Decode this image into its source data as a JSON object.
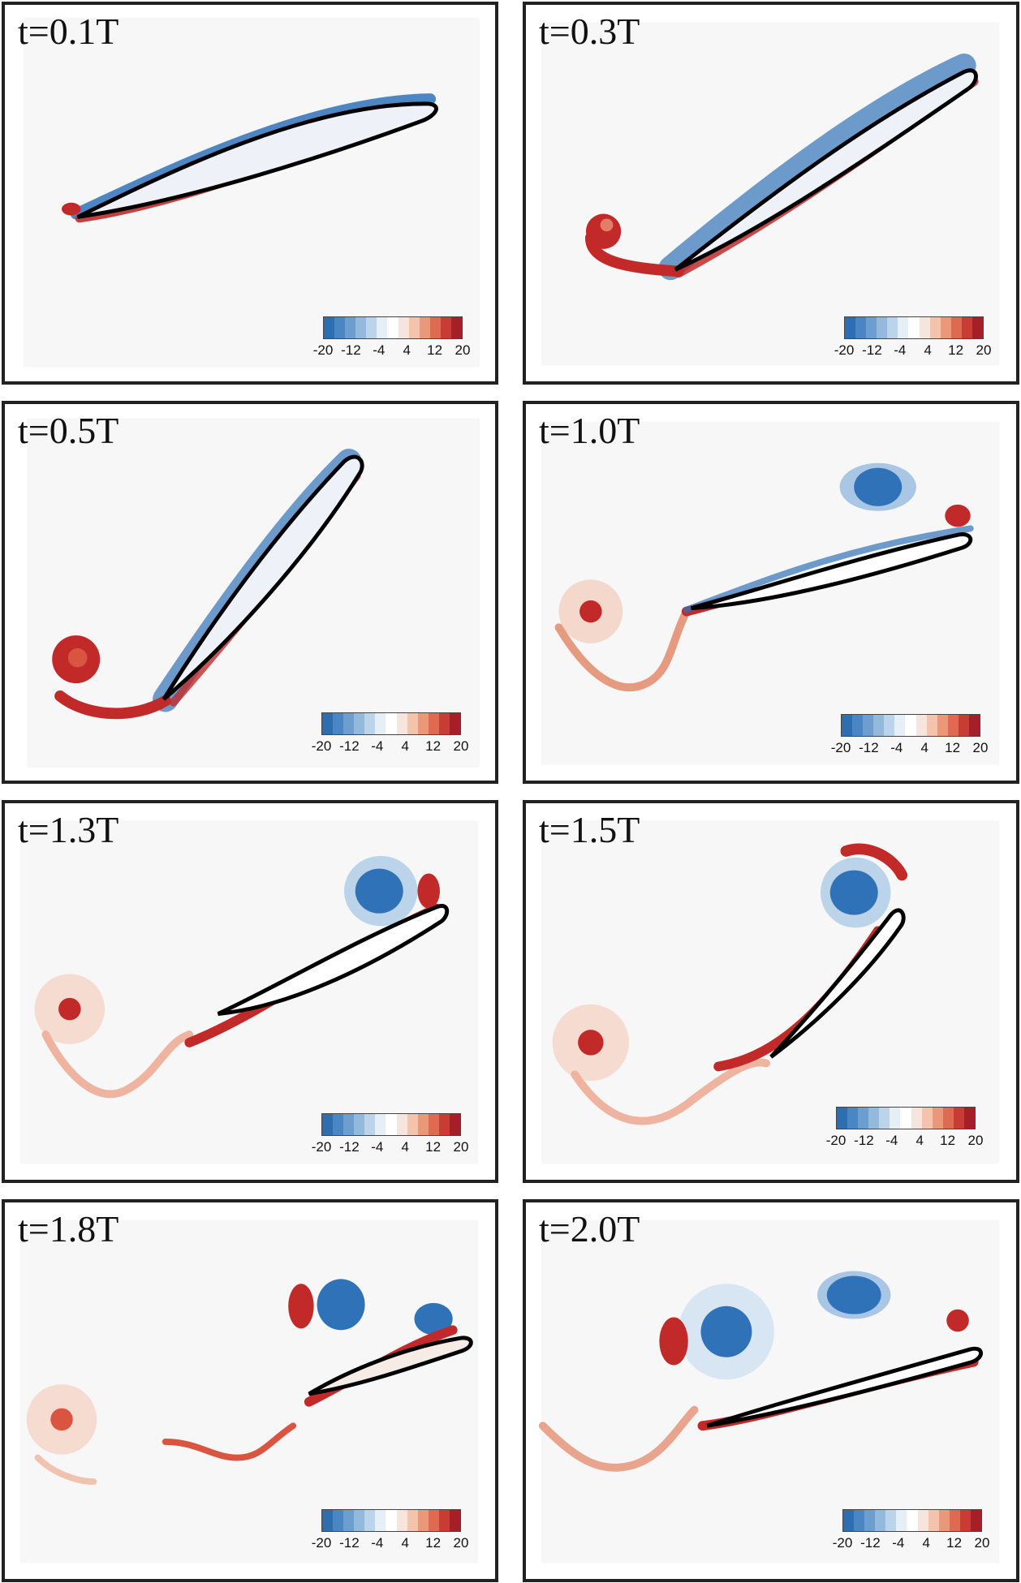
{
  "colors": {
    "background": "#f7f7f7",
    "positive_vorticity": "#c22a2a",
    "negative_vorticity": "#2f72b8",
    "airfoil_outline": "#000000"
  },
  "colorbar": {
    "ticks": [
      "-20",
      "-12",
      "-4",
      "4",
      "12",
      "20"
    ],
    "swatches": [
      "#2c6eb0",
      "#4a86c3",
      "#6c9ecf",
      "#93b9dd",
      "#bcd4ea",
      "#e6eef6",
      "#ffffff",
      "#f6e5dc",
      "#f3c3ac",
      "#ea977a",
      "#de6a52",
      "#c83c33",
      "#a51f26"
    ]
  },
  "panels": [
    {
      "label": "t=0.1T"
    },
    {
      "label": "t=0.3T"
    },
    {
      "label": "t=0.5T"
    },
    {
      "label": "t=1.0T"
    },
    {
      "label": "t=1.3T"
    },
    {
      "label": "t=1.5T"
    },
    {
      "label": "t=1.8T"
    },
    {
      "label": "t=2.0T"
    }
  ]
}
